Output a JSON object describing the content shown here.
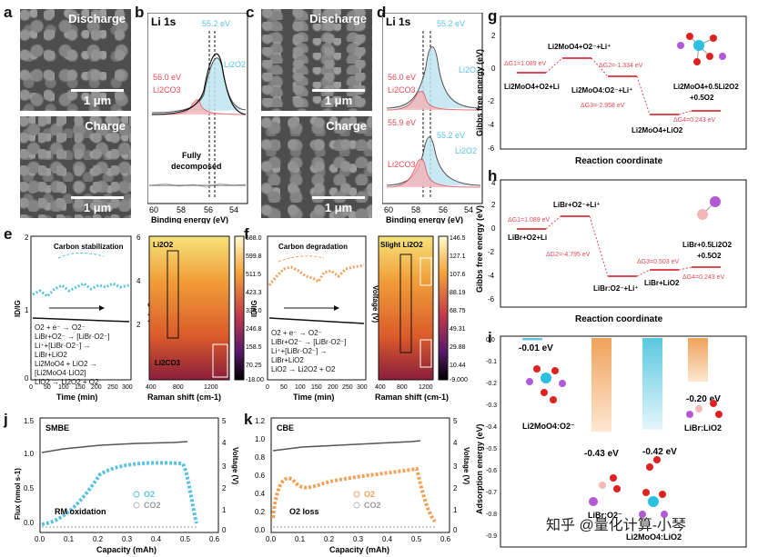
{
  "panels": {
    "a": {
      "label": "a",
      "top_title": "Discharge",
      "bottom_title": "Charge",
      "scale": "1 μm"
    },
    "b": {
      "label": "b",
      "title": "Li 1s",
      "peak_li2o2": "55.2 eV",
      "peak_li2co3": "56.0 eV",
      "li2o2": "Li2O2",
      "li2co3": "Li2CO3",
      "note1": "Fully",
      "note2": "decomposed",
      "xlabel": "Binding energy (eV)",
      "xticks": [
        "60",
        "58",
        "56",
        "54"
      ]
    },
    "c": {
      "label": "c",
      "top_title": "Discharge",
      "bottom_title": "Charge",
      "scale": "1 μm"
    },
    "d": {
      "label": "d",
      "title": "Li 1s",
      "peak_li2o2_top": "55.2 eV",
      "peak_li2co3_top": "56.0 eV",
      "peak_li2co3_bot": "55.9 eV",
      "peak_li2o2_bot": "55.2 eV",
      "li2o2": "Li2O2",
      "li2co3": "Li2CO3",
      "xlabel": "Binding energy (eV)",
      "xticks": [
        "60",
        "58",
        "56",
        "54"
      ]
    },
    "e": {
      "label": "e",
      "annotation": "Carbon stabilization",
      "ylabel": "ID/IG",
      "y2label": "Voltage (V)",
      "xlabel": "Time (min)",
      "xticks": [
        "0",
        "50",
        "100",
        "150",
        "200",
        "250",
        "300"
      ],
      "y2ticks": [
        "6",
        "4",
        "2"
      ],
      "yticks": [
        "2",
        "1",
        "0"
      ],
      "raman_top": "Li2O2",
      "raman_bottom": "Li2CO3",
      "raman_xlabel": "Raman shift (cm-1)",
      "raman_xticks": [
        "400",
        "800",
        "1200"
      ],
      "colorbar": [
        "688.0",
        "599.8",
        "511.5",
        "423.3",
        "335.0",
        "246.8",
        "158.5",
        "70.25",
        "-18.00"
      ],
      "eqs": [
        "O2 + e⁻ → O2⁻",
        "LiBr+O2⁻ → [LiBr·O2⁻]",
        "Li⁺+[LiBr·O2⁻] →",
        "LiBr+LiO2",
        "Li2MoO4 + LiO2 →",
        "[Li2MoO4·LiO2]",
        "LiO2 → Li2O2 + O2"
      ]
    },
    "f": {
      "label": "f",
      "annotation": "Carbon degradation",
      "ylabel": "ID/IG",
      "y2label": "Voltage (V)",
      "xlabel": "Time (min)",
      "xticks": [
        "0",
        "50",
        "100",
        "150",
        "200",
        "250",
        "300"
      ],
      "raman_top": "Slight Li2O2",
      "raman_xlabel": "Raman shift (cm-1)",
      "raman_xticks": [
        "400",
        "800",
        "1200"
      ],
      "colorbar": [
        "146.5",
        "127.1",
        "107.6",
        "88.19",
        "68.75",
        "49.31",
        "29.88",
        "10.44",
        "-9.000"
      ],
      "eqs": [
        "O2 + e⁻ → O2⁻",
        "LiBr+O2⁻ → [LiBr·O2⁻]",
        "Li⁺+[LiBr·O2⁻] →",
        "LiBr+LiO2",
        "LiO2 → Li2O2 + O2"
      ]
    },
    "g": {
      "label": "g",
      "ylabel": "Gibbs free energy (eV)",
      "xlabel": "Reaction coordinate",
      "yticks": [
        "2",
        "0",
        "-2",
        "-4",
        "-6"
      ],
      "states": [
        "Li2MoO4+O2+Li",
        "Li2MoO4+O2⁻+Li⁺",
        "Li2MoO4:O2⁻+Li⁺",
        "Li2MoO4+LiO2",
        "Li2MoO4+0.5Li2O2",
        "+0.5O2"
      ],
      "dg": [
        "ΔG1=1.089 eV",
        "ΔG2=-1.334 eV",
        "ΔG3=-2.958 eV",
        "ΔG4=0.243 eV"
      ]
    },
    "h": {
      "label": "h",
      "ylabel": "Gibbs free energy (eV)",
      "xlabel": "Reaction coordinate",
      "yticks": [
        "4",
        "2",
        "0",
        "-2",
        "-4",
        "-6"
      ],
      "states": [
        "LiBr+O2+Li",
        "LiBr+O2⁻+Li⁺",
        "LiBr:O2⁻+Li⁺",
        "LiBr+LiO2",
        "LiBr+0.5Li2O2",
        "+0.5O2"
      ],
      "dg": [
        "ΔG1=1.089 eV",
        "ΔG2=-4.795 eV",
        "ΔG3=0.503 eV",
        "ΔG4=0.243 eV"
      ]
    },
    "i": {
      "label": "i",
      "ylabel": "Adsorption energy (eV)",
      "yticks": [
        "0.0",
        "-0.1",
        "-0.2",
        "-0.3",
        "-0.4",
        "-0.5",
        "-0.6",
        "-0.7",
        "-0.8",
        "-0.9"
      ],
      "values": [
        "-0.01 eV",
        "-0.43 eV",
        "-0.42 eV",
        "-0.20 eV"
      ],
      "names": [
        "Li2MoO4:O2⁻",
        "LiBr:O2⁻",
        "Li2MoO4:LiO2",
        "LiBr:LiO2"
      ]
    },
    "j": {
      "label": "j",
      "title": "SMBE",
      "note": "RM oxidation",
      "legend": [
        "O2",
        "CO2"
      ],
      "ylabel": "Flux (nmol s-1)",
      "y2label": "Voltage (V)",
      "xlabel": "Capacity (mAh)",
      "xticks": [
        "0.0",
        "0.1",
        "0.2",
        "0.3",
        "0.4",
        "0.5",
        "0.6"
      ],
      "yticks": [
        "1.5",
        "1.0",
        "0.5",
        "0.0"
      ],
      "y2ticks": [
        "5",
        "4",
        "3",
        "2",
        "1",
        "0"
      ]
    },
    "k": {
      "label": "k",
      "title": "CBE",
      "note": "O2 loss",
      "legend": [
        "O2",
        "CO2"
      ],
      "ylabel": "Flux (nmol s-1)",
      "y2label": "Voltage (V)",
      "xlabel": "Capacity (mAh)",
      "xticks": [
        "0.0",
        "0.1",
        "0.2",
        "0.3",
        "0.4",
        "0.5",
        "0.6"
      ],
      "yticks": [
        "1.2",
        "1.0",
        "0.8",
        "0.6",
        "0.4",
        "0.2",
        "0.0"
      ],
      "y2ticks": [
        "5",
        "4",
        "3",
        "2",
        "1",
        "0"
      ]
    }
  },
  "watermark": "知乎 @量化计算-小琴",
  "colors": {
    "blue": "#5bc3df",
    "orange": "#f0a25a",
    "red": "#e04a55",
    "teal": "#5ac8e0"
  }
}
